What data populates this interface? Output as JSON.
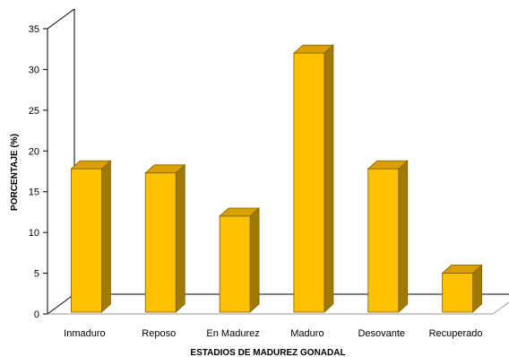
{
  "chart_data": {
    "type": "bar",
    "title": "",
    "xlabel": "ESTADIOS DE MADUREZ GONADAL",
    "ylabel": "PORCENTAJE (%)",
    "ylim": [
      0,
      35
    ],
    "yticks": [
      "0",
      "5",
      "10",
      "15",
      "20",
      "25",
      "30",
      "35"
    ],
    "grid": false,
    "style": "3d",
    "categories": [
      "Inmaduro",
      "Reposo",
      "En Madurez",
      "Maduro",
      "Desovante",
      "Recuperado"
    ],
    "values": [
      17.8,
      17.3,
      12.0,
      32.0,
      17.8,
      5.0
    ],
    "colors": {
      "front": "#FFC000",
      "side": "#A07A08",
      "top": "#D8A000",
      "edge": "#7F6000"
    }
  }
}
